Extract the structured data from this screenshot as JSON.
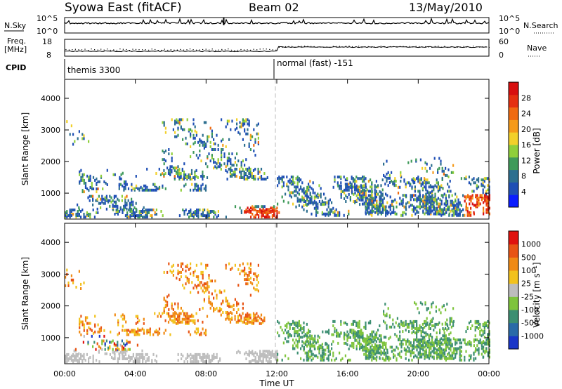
{
  "header": {
    "station": "Syowa East (fitACF)",
    "beam": "Beam 02",
    "date": "13/May/2010"
  },
  "top_panels": {
    "nsky_label": "N.Sky",
    "nsky_ticks": [
      "10^5",
      "10^0"
    ],
    "nsearch_label": "N.Search",
    "nsearch_ticks": [
      "10^5",
      "10^0"
    ],
    "freq_label_1": "Freq.",
    "freq_label_2": "[MHz]",
    "freq_ticks": [
      "18",
      "8"
    ],
    "nave_label": "Nave",
    "nave_ticks": [
      "60",
      "0"
    ],
    "cpid_label": "CPID",
    "cpid_segments": [
      "themis 3300",
      "normal (fast) -151"
    ]
  },
  "chart_data": [
    {
      "type": "heatmap",
      "name": "power",
      "ylabel": "Slant Range [km]",
      "xlabel": "Time UT",
      "yticks": [
        1000,
        2000,
        3000,
        4000
      ],
      "ylim": [
        180,
        4600
      ],
      "xticks": [
        "00:00",
        "04:00",
        "08:00",
        "12:00",
        "16:00",
        "20:00",
        "00:00"
      ],
      "xlim_hours": [
        0,
        24
      ],
      "colorbar_label": "Power [dB]",
      "colorbar_ticks": [
        "28",
        "24",
        "20",
        "16",
        "12",
        "8",
        "4"
      ],
      "colorbar_colors": [
        "#0b1dff",
        "#1f4fb5",
        "#2d6f8f",
        "#3f9a5a",
        "#8fcf3a",
        "#f2d02a",
        "#f59a1a",
        "#f06a10",
        "#e53010",
        "#d80f0f"
      ]
    },
    {
      "type": "heatmap",
      "name": "velocity",
      "ylabel": "Slant Range [km]",
      "xlabel": "Time UT",
      "yticks": [
        1000,
        2000,
        3000,
        4000
      ],
      "ylim": [
        180,
        4600
      ],
      "xticks": [
        "00:00",
        "04:00",
        "08:00",
        "12:00",
        "16:00",
        "20:00",
        "00:00"
      ],
      "xlim_hours": [
        0,
        24
      ],
      "colorbar_label": "Velocity [m s⁻¹]",
      "colorbar_ticks": [
        "1000",
        "500",
        "100",
        "25",
        "-25",
        "-100",
        "-500",
        "-1000"
      ],
      "colorbar_colors": [
        "#1a36c8",
        "#2a6aa8",
        "#3d8f72",
        "#7ec43c",
        "#bdbdbd",
        "#f2c21c",
        "#f08a14",
        "#e85414",
        "#e0120e"
      ]
    }
  ],
  "xaxis_title": "Time UT"
}
